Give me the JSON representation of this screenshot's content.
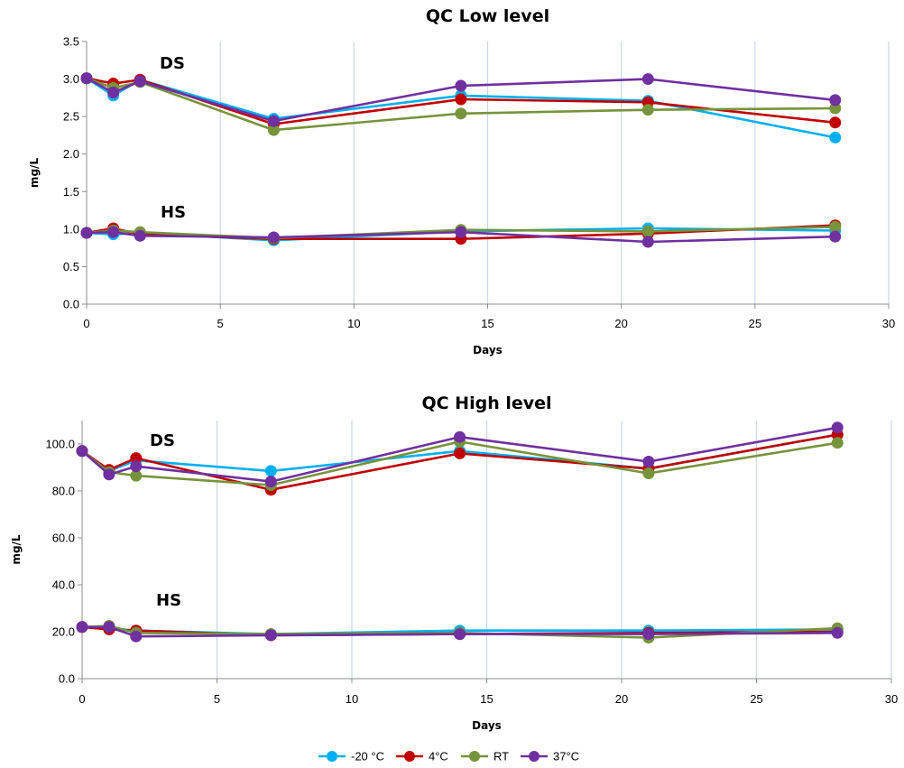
{
  "chart_data": [
    {
      "type": "line",
      "title": "QC Low level",
      "xlabel": "Days",
      "ylabel": "mg/L",
      "xlim": [
        0,
        30
      ],
      "ylim": [
        0,
        3.5
      ],
      "x_ticks": [
        0,
        5,
        10,
        15,
        20,
        25,
        30
      ],
      "y_ticks": [
        "0.0",
        "0.5",
        "1.0",
        "1.5",
        "2.0",
        "2.5",
        "3.0",
        "3.5"
      ],
      "grid": "vertical",
      "annotations": [
        "DS",
        "HS"
      ],
      "x": [
        0,
        1,
        2,
        7,
        14,
        21,
        28
      ],
      "series": [
        {
          "name": "-20 °C",
          "group": "DS",
          "values": [
            3.01,
            2.78,
            2.99,
            2.47,
            2.78,
            2.71,
            2.22
          ]
        },
        {
          "name": "4°C",
          "group": "DS",
          "values": [
            3.01,
            2.94,
            2.99,
            2.4,
            2.73,
            2.69,
            2.42
          ]
        },
        {
          "name": "RT",
          "group": "DS",
          "values": [
            3.01,
            2.88,
            2.96,
            2.32,
            2.54,
            2.59,
            2.61
          ]
        },
        {
          "name": "37°C",
          "group": "DS",
          "values": [
            3.01,
            2.82,
            2.97,
            2.44,
            2.91,
            3.0,
            2.72
          ]
        },
        {
          "name": "-20 °C",
          "group": "HS",
          "values": [
            0.95,
            0.93,
            0.95,
            0.85,
            0.97,
            1.01,
            0.98
          ]
        },
        {
          "name": "4°C",
          "group": "HS",
          "values": [
            0.95,
            1.01,
            0.93,
            0.87,
            0.87,
            0.94,
            1.05
          ]
        },
        {
          "name": "RT",
          "group": "HS",
          "values": [
            0.95,
            0.98,
            0.96,
            0.88,
            0.99,
            0.97,
            1.03
          ]
        },
        {
          "name": "37°C",
          "group": "HS",
          "values": [
            0.95,
            0.96,
            0.91,
            0.89,
            0.96,
            0.83,
            0.9
          ]
        }
      ]
    },
    {
      "type": "line",
      "title": "QC High level",
      "xlabel": "Days",
      "ylabel": "mg/L",
      "xlim": [
        0,
        30
      ],
      "ylim": [
        0,
        110
      ],
      "x_ticks": [
        0,
        5,
        10,
        15,
        20,
        25,
        30
      ],
      "y_ticks": [
        "0.0",
        "20.0",
        "40.0",
        "60.0",
        "80.0",
        "100.0"
      ],
      "grid": "vertical",
      "annotations": [
        "DS",
        "HS"
      ],
      "x": [
        0,
        1,
        2,
        7,
        14,
        21,
        28
      ],
      "series": [
        {
          "name": "-20 °C",
          "group": "DS",
          "values": [
            97.0,
            88.5,
            93.0,
            88.5,
            97.0,
            89.5,
            104.0
          ]
        },
        {
          "name": "4°C",
          "group": "DS",
          "values": [
            97.0,
            89.0,
            94.0,
            80.5,
            96.0,
            89.5,
            104.0
          ]
        },
        {
          "name": "RT",
          "group": "DS",
          "values": [
            97.0,
            88.0,
            86.5,
            82.5,
            101.0,
            87.5,
            100.5
          ]
        },
        {
          "name": "37°C",
          "group": "DS",
          "values": [
            97.0,
            87.0,
            90.5,
            84.0,
            103.0,
            92.5,
            107.0
          ]
        },
        {
          "name": "-20 °C",
          "group": "HS",
          "values": [
            22.0,
            21.5,
            20.5,
            19.0,
            20.5,
            20.5,
            21.0
          ]
        },
        {
          "name": "4°C",
          "group": "HS",
          "values": [
            22.0,
            21.0,
            20.5,
            18.5,
            19.0,
            19.5,
            20.0
          ]
        },
        {
          "name": "RT",
          "group": "HS",
          "values": [
            22.0,
            22.5,
            19.5,
            19.0,
            19.5,
            17.5,
            21.5
          ]
        },
        {
          "name": "37°C",
          "group": "HS",
          "values": [
            22.0,
            22.0,
            18.0,
            18.5,
            19.0,
            19.0,
            19.5
          ]
        }
      ]
    }
  ],
  "legend": {
    "placement": "bottom-center",
    "items": [
      {
        "name": "-20 °C",
        "color": "#00b0f0"
      },
      {
        "name": "4°C",
        "color": "#c00000"
      },
      {
        "name": "RT",
        "color": "#77933c"
      },
      {
        "name": "37°C",
        "color": "#7030a0"
      }
    ]
  }
}
